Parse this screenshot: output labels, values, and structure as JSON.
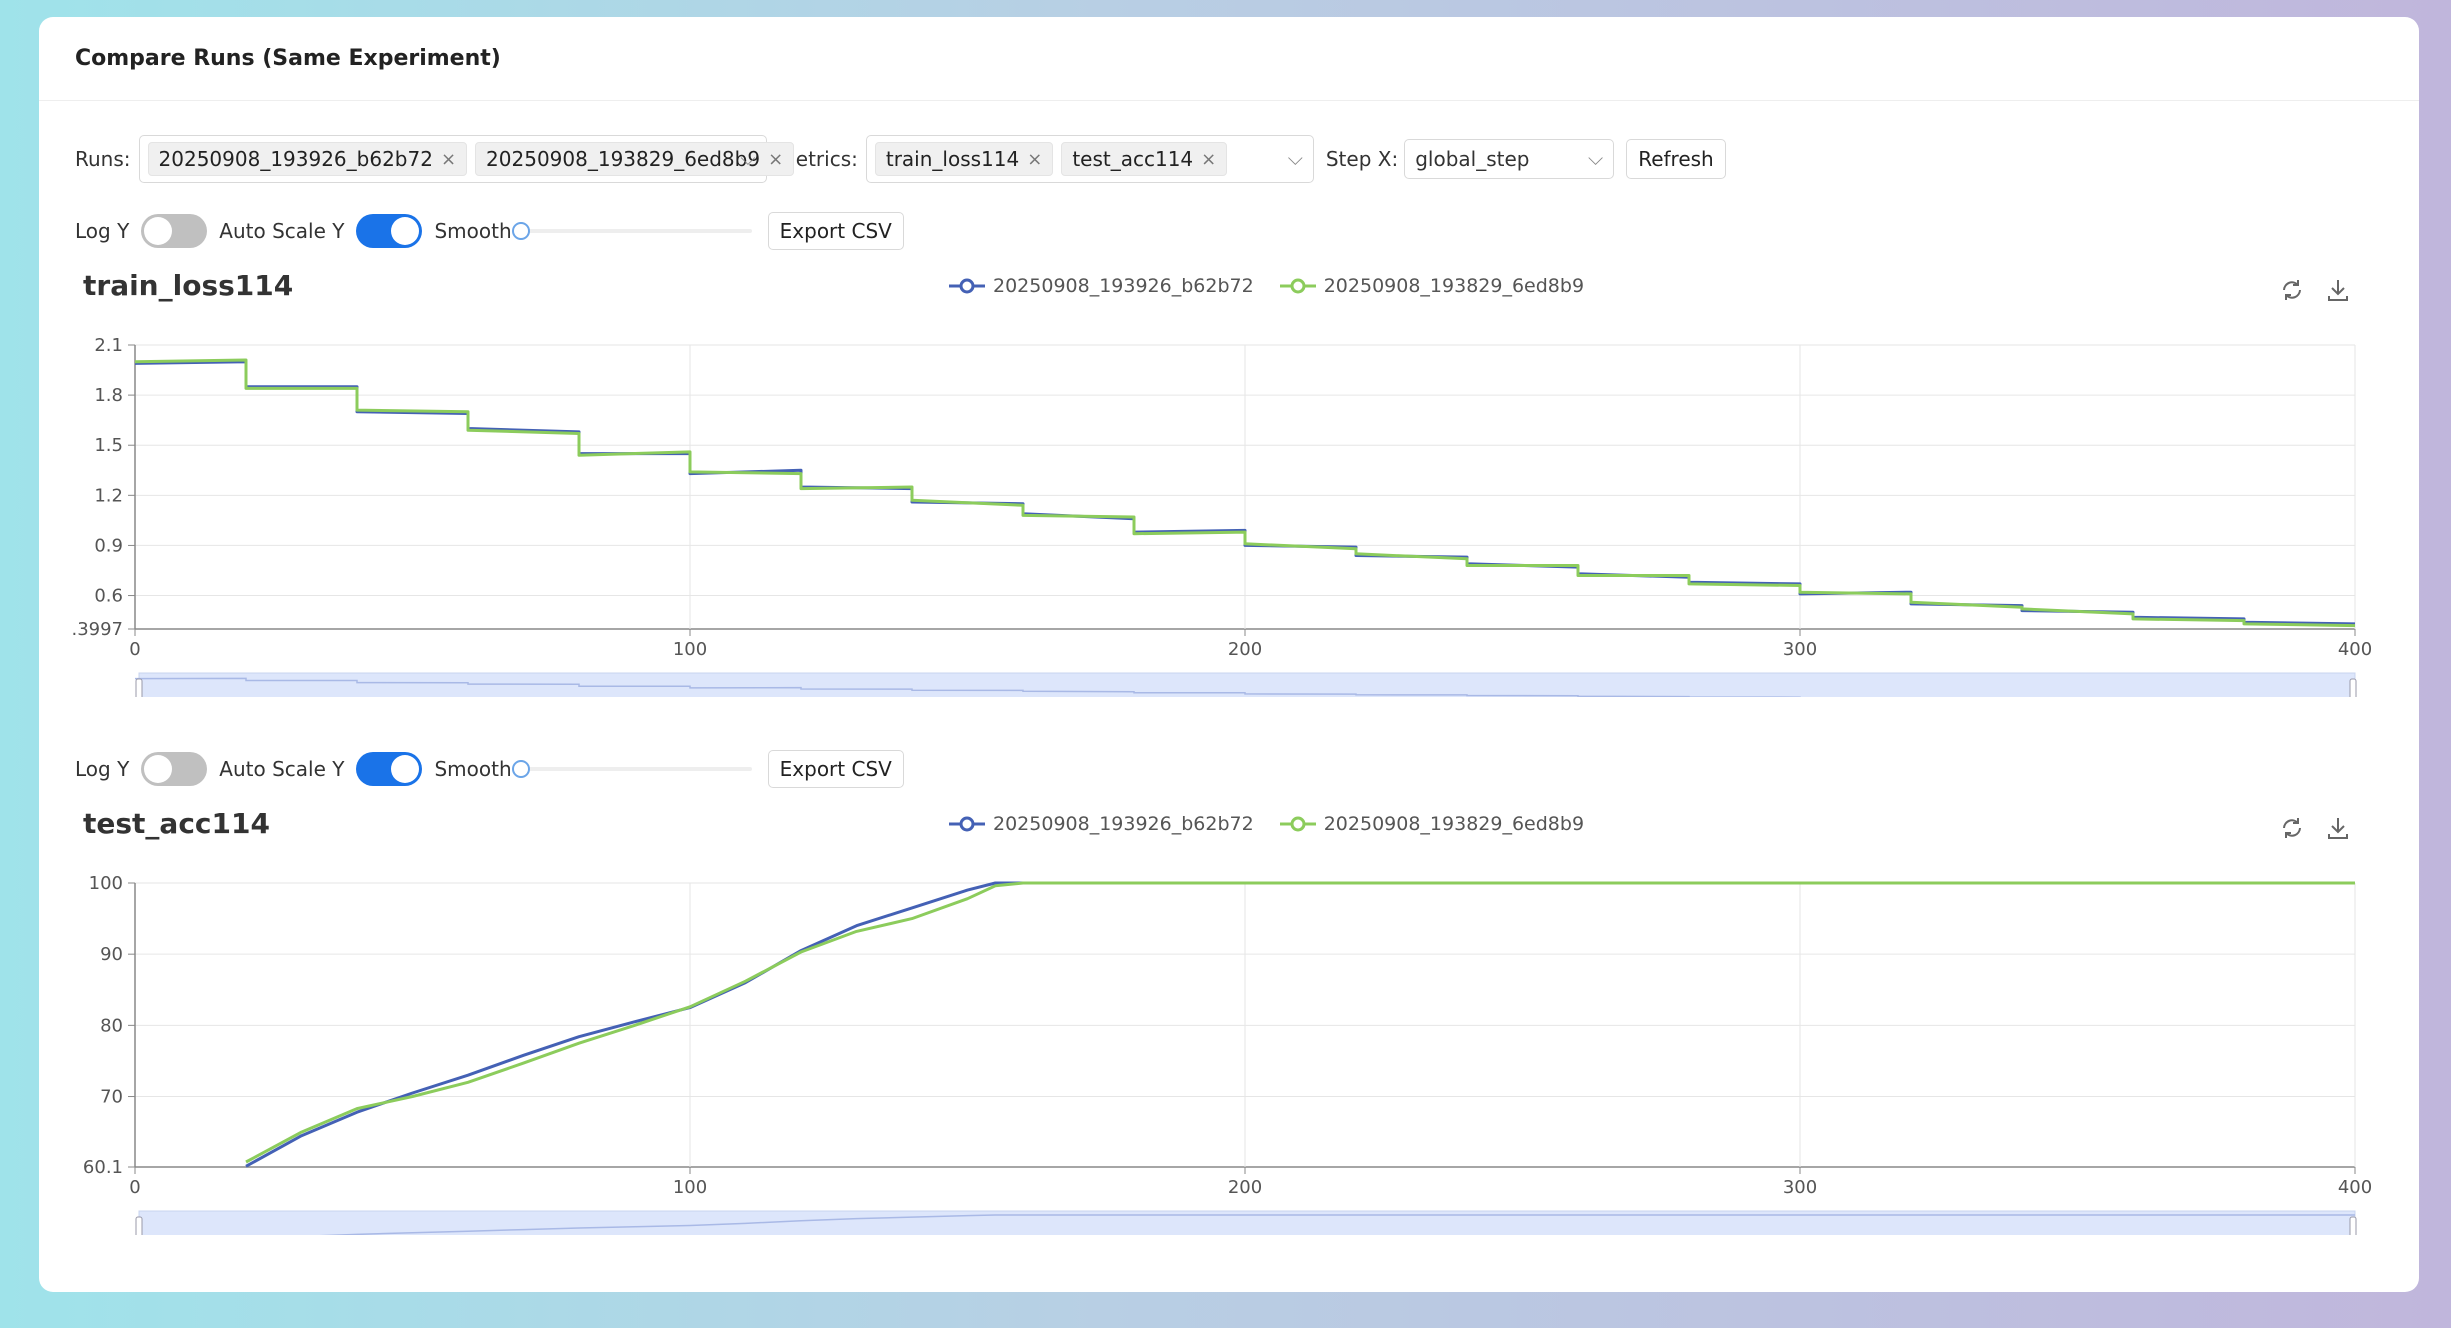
{
  "page": {
    "title": "Compare Runs (Same Experiment)"
  },
  "toolbar": {
    "runs_label": "Runs:",
    "runs": [
      "20250908_193926_b62b72",
      "20250908_193829_6ed8b9"
    ],
    "metrics_label": "Metrics:",
    "metrics": [
      "train_loss114",
      "test_acc114"
    ],
    "stepx_label": "Step X:",
    "stepx_value": "global_step",
    "refresh_label": "Refresh"
  },
  "controls": {
    "log_y_label": "Log Y",
    "auto_scale_label": "Auto Scale Y",
    "smooth_label": "Smooth",
    "export_label": "Export CSV",
    "log_y": false,
    "auto_scale": true,
    "smooth": 0
  },
  "colors": {
    "run1": "#4461b5",
    "run2": "#8ccc5c",
    "accent": "#1a73e8"
  },
  "icons": {
    "close": "close-icon",
    "chevron": "chevron-down-icon",
    "restore": "restore-icon",
    "download": "download-icon"
  },
  "chart_data": [
    {
      "type": "line",
      "title": "train_loss114",
      "xlabel": "",
      "ylabel": "",
      "xlim": [
        0,
        400
      ],
      "ylim": [
        0.3997,
        2.1
      ],
      "xticks": [
        "0",
        "100",
        "200",
        "300",
        "400"
      ],
      "yticks": [
        ".3997",
        "0.6",
        "0.9",
        "1.2",
        "1.5",
        "1.8",
        "2.1"
      ],
      "grid": true,
      "legend": "top-center",
      "series": [
        {
          "name": "20250908_193926_b62b72",
          "x": [
            0,
            20,
            20,
            40,
            40,
            60,
            60,
            80,
            80,
            100,
            100,
            120,
            120,
            140,
            140,
            160,
            160,
            180,
            180,
            200,
            200,
            220,
            220,
            240,
            240,
            260,
            260,
            280,
            280,
            300,
            300,
            320,
            320,
            340,
            340,
            360,
            360,
            380,
            380,
            400
          ],
          "y": [
            1.99,
            2.0,
            1.85,
            1.85,
            1.7,
            1.69,
            1.6,
            1.58,
            1.45,
            1.45,
            1.33,
            1.35,
            1.25,
            1.24,
            1.16,
            1.15,
            1.09,
            1.06,
            0.98,
            0.99,
            0.9,
            0.89,
            0.84,
            0.83,
            0.79,
            0.77,
            0.73,
            0.71,
            0.68,
            0.67,
            0.61,
            0.62,
            0.55,
            0.54,
            0.51,
            0.5,
            0.47,
            0.46,
            0.44,
            0.43
          ]
        },
        {
          "name": "20250908_193829_6ed8b9",
          "x": [
            0,
            20,
            20,
            40,
            40,
            60,
            60,
            80,
            80,
            100,
            100,
            120,
            120,
            140,
            140,
            160,
            160,
            180,
            180,
            200,
            200,
            220,
            220,
            240,
            240,
            260,
            260,
            280,
            280,
            300,
            300,
            320,
            320,
            340,
            340,
            360,
            360,
            380,
            380,
            400
          ],
          "y": [
            2.0,
            2.01,
            1.84,
            1.84,
            1.71,
            1.7,
            1.59,
            1.57,
            1.44,
            1.46,
            1.34,
            1.33,
            1.24,
            1.25,
            1.17,
            1.14,
            1.08,
            1.07,
            0.97,
            0.98,
            0.91,
            0.88,
            0.85,
            0.82,
            0.78,
            0.78,
            0.72,
            0.72,
            0.67,
            0.66,
            0.62,
            0.61,
            0.56,
            0.53,
            0.52,
            0.49,
            0.46,
            0.45,
            0.43,
            0.42
          ]
        }
      ]
    },
    {
      "type": "line",
      "title": "test_acc114",
      "xlabel": "",
      "ylabel": "",
      "xlim": [
        0,
        400
      ],
      "ylim": [
        60.1,
        100
      ],
      "xticks": [
        "0",
        "100",
        "200",
        "300",
        "400"
      ],
      "yticks": [
        "60.1",
        "70",
        "80",
        "90",
        "100"
      ],
      "grid": true,
      "legend": "top-center",
      "series": [
        {
          "name": "20250908_193926_b62b72",
          "x": [
            20,
            30,
            40,
            50,
            60,
            70,
            80,
            90,
            100,
            110,
            120,
            130,
            140,
            150,
            155,
            160,
            200,
            300,
            400
          ],
          "y": [
            60.2,
            64.5,
            67.8,
            70.5,
            73.0,
            75.8,
            78.4,
            80.5,
            82.5,
            86.0,
            90.5,
            94.0,
            96.5,
            99.0,
            100,
            100,
            100,
            100,
            100
          ]
        },
        {
          "name": "20250908_193829_6ed8b9",
          "x": [
            20,
            30,
            40,
            50,
            60,
            70,
            80,
            90,
            100,
            110,
            120,
            130,
            140,
            150,
            155,
            160,
            200,
            300,
            400
          ],
          "y": [
            60.8,
            65.0,
            68.3,
            70.0,
            72.0,
            74.7,
            77.5,
            80.0,
            82.6,
            86.2,
            90.3,
            93.2,
            95.0,
            97.8,
            99.6,
            100,
            100,
            100,
            100
          ]
        }
      ]
    }
  ]
}
